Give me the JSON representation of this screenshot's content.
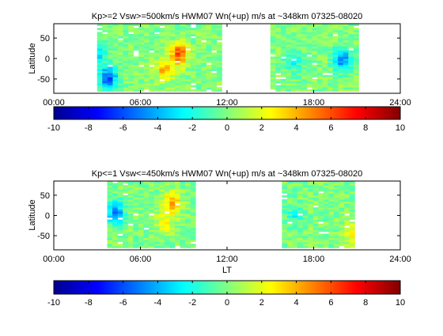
{
  "chart_data": [
    {
      "type": "heatmap",
      "title": "Kp>=2 Vsw>=500km/s HWM07 Wn(+up) m/s at ~348km 07325-08020",
      "xlabel": "",
      "ylabel": "Latitude",
      "xlim": [
        0,
        24
      ],
      "ylim": [
        -90,
        90
      ],
      "x_ticks": [
        "00:00",
        "06:00",
        "12:00",
        "18:00",
        "24:00"
      ],
      "y_ticks": [
        "50",
        "0",
        "-50"
      ],
      "color_range": [
        -10,
        10
      ],
      "colorbar_ticks": [
        "-10",
        "-8",
        "-6",
        "-4",
        "-2",
        "0",
        "2",
        "4",
        "6",
        "8",
        "10"
      ],
      "colormap": "jet",
      "coverage_lt_hours": [
        [
          3.0,
          11.5
        ],
        [
          15.0,
          21.0
        ]
      ],
      "notable_values": [
        {
          "lt": 8.5,
          "lat": 10,
          "value": 6
        },
        {
          "lt": 7.5,
          "lat": -30,
          "value": 4
        },
        {
          "lt": 19.8,
          "lat": -5,
          "value": -5
        },
        {
          "lt": 2.7,
          "lat": 10,
          "value": -4
        },
        {
          "lt": 3.6,
          "lat": -50,
          "value": -6
        },
        {
          "lt": 16.4,
          "lat": -10,
          "value": -2
        }
      ]
    },
    {
      "type": "heatmap",
      "title": "Kp<=1 Vsw<=450km/s HWM07 Wn(+up) m/s at ~348km 07325-08020",
      "xlabel": "LT",
      "ylabel": "Latitude",
      "xlim": [
        0,
        24
      ],
      "ylim": [
        -90,
        90
      ],
      "x_ticks": [
        "00:00",
        "06:00",
        "12:00",
        "18:00",
        "24:00"
      ],
      "y_ticks": [
        "50",
        "0",
        "-50"
      ],
      "color_range": [
        -10,
        10
      ],
      "colorbar_ticks": [
        "-10",
        "-8",
        "-6",
        "-4",
        "-2",
        "0",
        "2",
        "4",
        "6",
        "8",
        "10"
      ],
      "colormap": "jet",
      "coverage_lt_hours": [
        [
          3.7,
          9.5
        ],
        [
          15.8,
          20.8
        ]
      ],
      "notable_values": [
        {
          "lt": 4.1,
          "lat": 5,
          "value": -5
        },
        {
          "lt": 8.0,
          "lat": 30,
          "value": 4
        },
        {
          "lt": 7.5,
          "lat": -20,
          "value": 2
        },
        {
          "lt": 16.5,
          "lat": 0,
          "value": -2
        },
        {
          "lt": 20.6,
          "lat": -50,
          "value": 3
        }
      ]
    }
  ]
}
